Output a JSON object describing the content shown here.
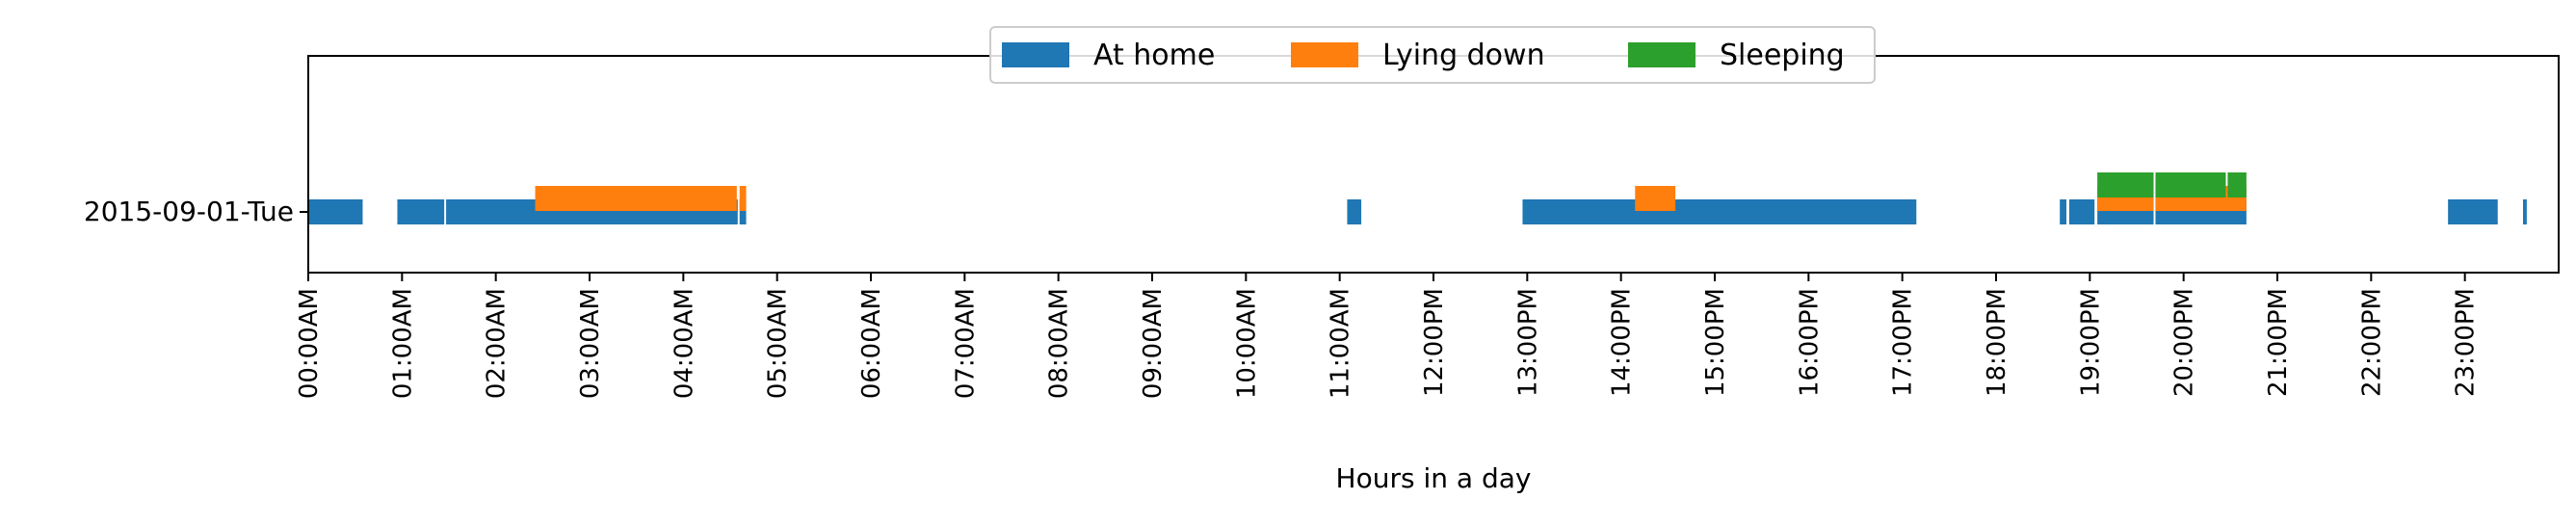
{
  "chart_data": {
    "type": "timeline",
    "xlabel": "Hours in a day",
    "ylabel": "",
    "row_label": "2015-09-01-Tue",
    "xlim": [
      0,
      24
    ],
    "x_tick_labels": [
      "00:00AM",
      "01:00AM",
      "02:00AM",
      "03:00AM",
      "04:00AM",
      "05:00AM",
      "06:00AM",
      "07:00AM",
      "08:00AM",
      "09:00AM",
      "10:00AM",
      "11:00AM",
      "12:00PM",
      "13:00PM",
      "14:00PM",
      "15:00PM",
      "16:00PM",
      "17:00PM",
      "18:00PM",
      "19:00PM",
      "20:00PM",
      "21:00PM",
      "22:00PM",
      "23:00PM"
    ],
    "grid": false,
    "legend_position": "top-center",
    "series": [
      {
        "name": "At home",
        "color": "#1f77b4",
        "level": 0,
        "intervals": [
          [
            0.0,
            0.58
          ],
          [
            0.95,
            1.45
          ],
          [
            1.47,
            4.58
          ],
          [
            4.6,
            4.67
          ],
          [
            11.08,
            11.23
          ],
          [
            12.95,
            17.15
          ],
          [
            18.68,
            18.75
          ],
          [
            18.78,
            19.05
          ],
          [
            19.08,
            19.68
          ],
          [
            19.7,
            20.67
          ],
          [
            22.82,
            23.35
          ],
          [
            23.62,
            23.66
          ]
        ]
      },
      {
        "name": "Lying down",
        "color": "#ff7f0e",
        "level": 1,
        "intervals": [
          [
            2.42,
            4.57
          ],
          [
            4.6,
            4.67
          ],
          [
            14.15,
            14.58
          ],
          [
            19.08,
            19.68
          ],
          [
            19.7,
            20.67
          ]
        ]
      },
      {
        "name": "Sleeping",
        "color": "#2ca02c",
        "level": 2,
        "intervals": [
          [
            19.08,
            19.68
          ],
          [
            19.7,
            20.45
          ],
          [
            20.47,
            20.67
          ]
        ]
      }
    ]
  }
}
